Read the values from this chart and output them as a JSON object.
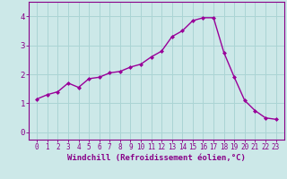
{
  "x": [
    0,
    1,
    2,
    3,
    4,
    5,
    6,
    7,
    8,
    9,
    10,
    11,
    12,
    13,
    14,
    15,
    16,
    17,
    18,
    19,
    20,
    21,
    22,
    23
  ],
  "y": [
    1.15,
    1.3,
    1.4,
    1.7,
    1.55,
    1.85,
    1.9,
    2.05,
    2.1,
    2.25,
    2.35,
    2.6,
    2.8,
    3.3,
    3.5,
    3.85,
    3.95,
    3.95,
    2.75,
    1.9,
    1.1,
    0.75,
    0.5,
    0.45
  ],
  "line_color": "#990099",
  "marker": "D",
  "marker_size": 2.0,
  "bg_color": "#cce8e8",
  "grid_color": "#aad4d4",
  "xlabel": "Windchill (Refroidissement éolien,°C)",
  "xlabel_color": "#880088",
  "tick_color": "#880088",
  "ylim": [
    -0.25,
    4.5
  ],
  "xlim": [
    -0.8,
    23.8
  ],
  "yticks": [
    0,
    1,
    2,
    3,
    4
  ],
  "xticks": [
    0,
    1,
    2,
    3,
    4,
    5,
    6,
    7,
    8,
    9,
    10,
    11,
    12,
    13,
    14,
    15,
    16,
    17,
    18,
    19,
    20,
    21,
    22,
    23
  ],
  "xlabel_fontsize": 6.5,
  "tick_fontsize": 5.5,
  "ytick_fontsize": 6.5,
  "spine_color": "#880088"
}
